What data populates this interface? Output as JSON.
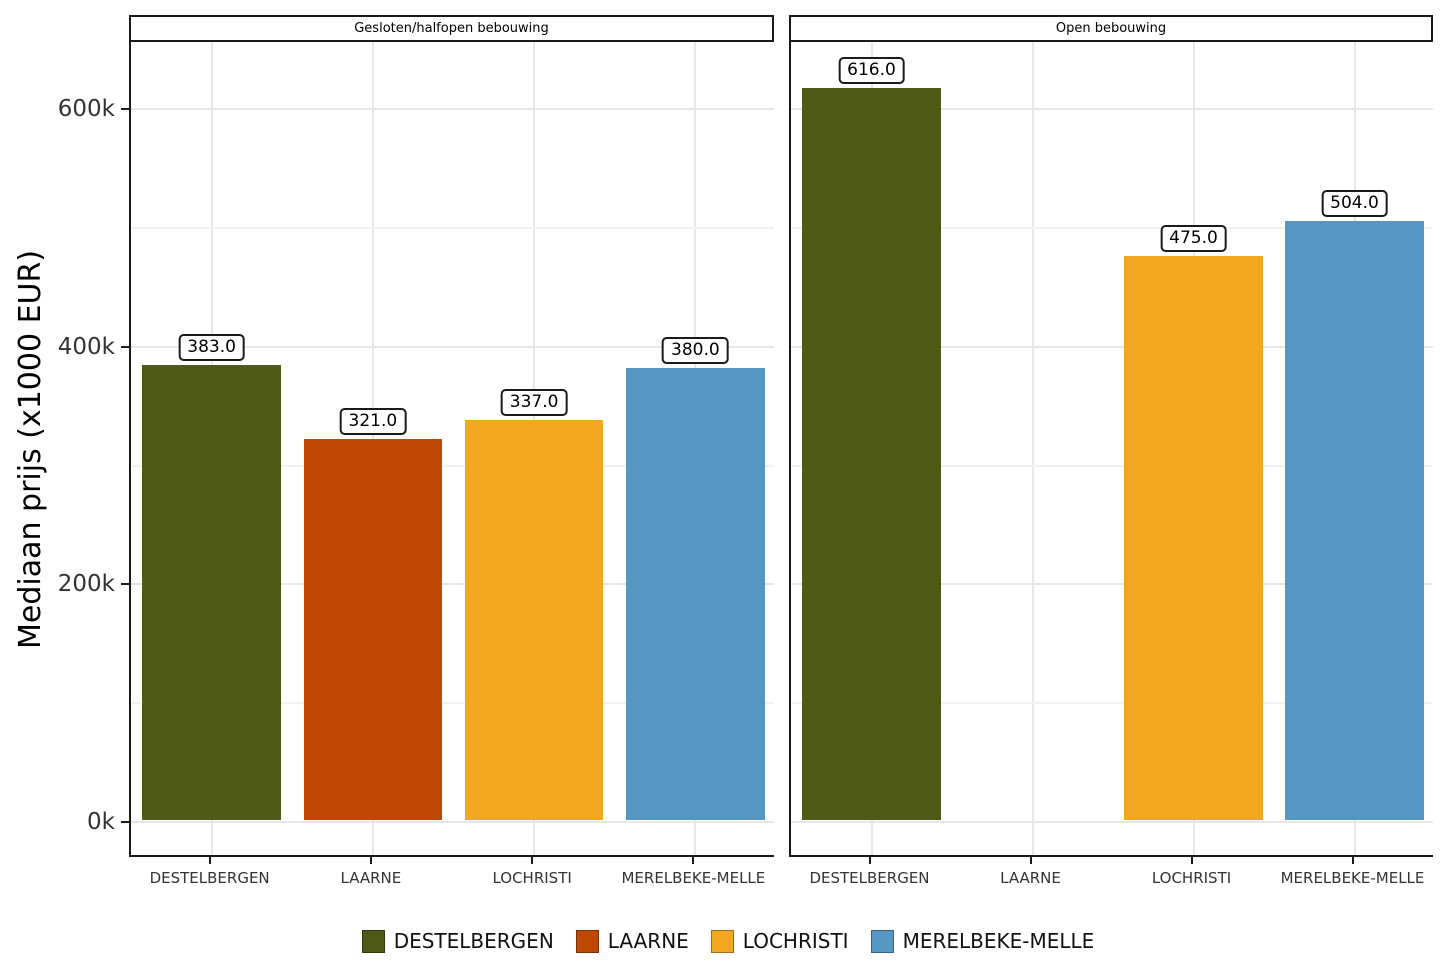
{
  "chart_data": {
    "type": "bar",
    "title": "",
    "ylabel": "Mediaan prijs (x1000 EUR)",
    "xlabel": "",
    "categories": [
      "DESTELBERGEN",
      "LAARNE",
      "LOCHRISTI",
      "MERELBEKE-MELLE"
    ],
    "colors": {
      "DESTELBERGEN": "#4f5a16",
      "LAARNE": "#bf4904",
      "LOCHRISTI": "#f0a822",
      "MERELBEKE-MELLE": "#5596c3"
    },
    "facets": [
      {
        "label": "Gesloten/halfopen bebouwing",
        "values": [
          383.0,
          321.0,
          337.0,
          380.0
        ],
        "bar_labels": [
          "383.0",
          "321.0",
          "337.0",
          "380.0"
        ]
      },
      {
        "label": "Open bebouwing",
        "values": [
          616.0,
          null,
          475.0,
          504.0
        ],
        "bar_labels": [
          "616.0",
          null,
          "475.0",
          "504.0"
        ]
      }
    ],
    "y_axis": {
      "ticks": [
        {
          "value": 0,
          "label": "0k"
        },
        {
          "value": 200,
          "label": "200k"
        },
        {
          "value": 400,
          "label": "400k"
        },
        {
          "value": 600,
          "label": "600k"
        }
      ],
      "minor": [
        100,
        300,
        500
      ],
      "range": [
        -29.5,
        656
      ]
    },
    "legend": {
      "position": "bottom",
      "entries": [
        {
          "label": "DESTELBERGEN",
          "color": "#4f5a16"
        },
        {
          "label": "LAARNE",
          "color": "#bf4904"
        },
        {
          "label": "LOCHRISTI",
          "color": "#f0a822"
        },
        {
          "label": "MERELBEKE-MELLE",
          "color": "#5596c3"
        }
      ]
    },
    "grid": {
      "major_color": "#e7e7e7",
      "minor_color": "#f2f2f2",
      "visible": true
    }
  }
}
